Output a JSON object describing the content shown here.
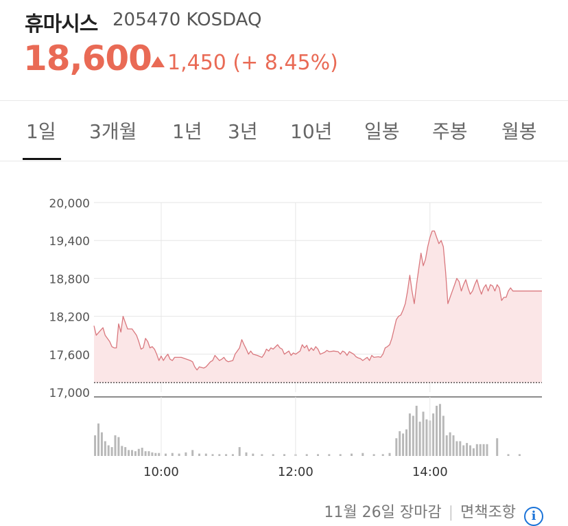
{
  "stock": {
    "name": "휴마시스",
    "code_market": "205470 KOSDAQ",
    "price": "18,600",
    "change": "1,450 (+ 8.45%)",
    "direction": "up",
    "up_color": "#e96a55"
  },
  "tabs": [
    {
      "label": "1일",
      "active": true
    },
    {
      "label": "3개월",
      "active": false
    },
    {
      "label": "1년",
      "active": false
    },
    {
      "label": "3년",
      "active": false
    },
    {
      "label": "10년",
      "active": false
    },
    {
      "label": "일봉",
      "active": false
    },
    {
      "label": "주봉",
      "active": false
    },
    {
      "label": "월봉",
      "active": false
    }
  ],
  "footer": {
    "status": "11월 26일 장마감",
    "disclaimer": "면책조항",
    "info_icon": "info-icon"
  },
  "chart_data": {
    "type": "line",
    "x_unit": "minutes",
    "xlim": [
      "09:00",
      "15:40"
    ],
    "ylim": [
      17000,
      20000
    ],
    "y_ticks": [
      "20,000",
      "19,400",
      "18,800",
      "18,200",
      "17,600",
      "17,000"
    ],
    "x_ticks": [
      "10:00",
      "12:00",
      "14:00"
    ],
    "prev_close": 17150,
    "line_color": "#d9777d",
    "fill_color": "#fbe6e7",
    "grid": true,
    "price_series": [
      [
        "09:00",
        18050
      ],
      [
        "09:02",
        17900
      ],
      [
        "09:06",
        17980
      ],
      [
        "09:08",
        18020
      ],
      [
        "09:10",
        17900
      ],
      [
        "09:14",
        17800
      ],
      [
        "09:16",
        17720
      ],
      [
        "09:18",
        17700
      ],
      [
        "09:20",
        17700
      ],
      [
        "09:22",
        18080
      ],
      [
        "09:24",
        17950
      ],
      [
        "09:26",
        18200
      ],
      [
        "09:28",
        18100
      ],
      [
        "09:30",
        18000
      ],
      [
        "09:34",
        18000
      ],
      [
        "09:38",
        17900
      ],
      [
        "09:40",
        17800
      ],
      [
        "09:42",
        17680
      ],
      [
        "09:44",
        17700
      ],
      [
        "09:46",
        17850
      ],
      [
        "09:48",
        17800
      ],
      [
        "09:50",
        17700
      ],
      [
        "09:52",
        17720
      ],
      [
        "09:54",
        17680
      ],
      [
        "09:56",
        17600
      ],
      [
        "09:58",
        17500
      ],
      [
        "10:00",
        17570
      ],
      [
        "10:02",
        17500
      ],
      [
        "10:04",
        17560
      ],
      [
        "10:06",
        17600
      ],
      [
        "10:08",
        17520
      ],
      [
        "10:10",
        17500
      ],
      [
        "10:12",
        17550
      ],
      [
        "10:18",
        17550
      ],
      [
        "10:26",
        17500
      ],
      [
        "10:28",
        17480
      ],
      [
        "10:30",
        17400
      ],
      [
        "10:32",
        17350
      ],
      [
        "10:34",
        17400
      ],
      [
        "10:38",
        17380
      ],
      [
        "10:40",
        17400
      ],
      [
        "10:44",
        17480
      ],
      [
        "10:46",
        17500
      ],
      [
        "10:48",
        17580
      ],
      [
        "10:50",
        17540
      ],
      [
        "10:52",
        17500
      ],
      [
        "10:54",
        17520
      ],
      [
        "10:56",
        17550
      ],
      [
        "10:58",
        17500
      ],
      [
        "11:00",
        17480
      ],
      [
        "11:04",
        17500
      ],
      [
        "11:06",
        17600
      ],
      [
        "11:10",
        17700
      ],
      [
        "11:12",
        17830
      ],
      [
        "11:14",
        17750
      ],
      [
        "11:16",
        17680
      ],
      [
        "11:18",
        17600
      ],
      [
        "11:20",
        17650
      ],
      [
        "11:22",
        17600
      ],
      [
        "11:26",
        17580
      ],
      [
        "11:30",
        17550
      ],
      [
        "11:32",
        17600
      ],
      [
        "11:34",
        17680
      ],
      [
        "11:36",
        17650
      ],
      [
        "11:38",
        17700
      ],
      [
        "11:40",
        17680
      ],
      [
        "11:44",
        17750
      ],
      [
        "11:46",
        17700
      ],
      [
        "11:48",
        17680
      ],
      [
        "11:50",
        17600
      ],
      [
        "11:54",
        17650
      ],
      [
        "11:56",
        17580
      ],
      [
        "11:58",
        17620
      ],
      [
        "12:00",
        17600
      ],
      [
        "12:04",
        17650
      ],
      [
        "12:06",
        17750
      ],
      [
        "12:08",
        17700
      ],
      [
        "12:10",
        17740
      ],
      [
        "12:12",
        17650
      ],
      [
        "12:14",
        17700
      ],
      [
        "12:16",
        17660
      ],
      [
        "12:18",
        17720
      ],
      [
        "12:20",
        17680
      ],
      [
        "12:22",
        17600
      ],
      [
        "12:26",
        17630
      ],
      [
        "12:28",
        17660
      ],
      [
        "12:30",
        17640
      ],
      [
        "12:34",
        17650
      ],
      [
        "12:38",
        17640
      ],
      [
        "12:40",
        17600
      ],
      [
        "12:42",
        17650
      ],
      [
        "12:44",
        17630
      ],
      [
        "12:46",
        17580
      ],
      [
        "12:48",
        17640
      ],
      [
        "12:50",
        17620
      ],
      [
        "12:52",
        17600
      ],
      [
        "12:54",
        17560
      ],
      [
        "12:56",
        17540
      ],
      [
        "12:58",
        17530
      ],
      [
        "13:00",
        17500
      ],
      [
        "13:04",
        17550
      ],
      [
        "13:06",
        17500
      ],
      [
        "13:08",
        17580
      ],
      [
        "13:10",
        17550
      ],
      [
        "13:14",
        17560
      ],
      [
        "13:16",
        17550
      ],
      [
        "13:18",
        17600
      ],
      [
        "13:20",
        17700
      ],
      [
        "13:22",
        17720
      ],
      [
        "13:24",
        17750
      ],
      [
        "13:26",
        17850
      ],
      [
        "13:28",
        18000
      ],
      [
        "13:30",
        18150
      ],
      [
        "13:32",
        18200
      ],
      [
        "13:34",
        18220
      ],
      [
        "13:36",
        18300
      ],
      [
        "13:38",
        18400
      ],
      [
        "13:40",
        18600
      ],
      [
        "13:42",
        18850
      ],
      [
        "13:44",
        18600
      ],
      [
        "13:46",
        18400
      ],
      [
        "13:48",
        18700
      ],
      [
        "13:50",
        18950
      ],
      [
        "13:52",
        19200
      ],
      [
        "13:54",
        19000
      ],
      [
        "13:56",
        19100
      ],
      [
        "13:58",
        19300
      ],
      [
        "14:00",
        19450
      ],
      [
        "14:02",
        19550
      ],
      [
        "14:04",
        19550
      ],
      [
        "14:06",
        19450
      ],
      [
        "14:08",
        19350
      ],
      [
        "14:10",
        19400
      ],
      [
        "14:12",
        19300
      ],
      [
        "14:14",
        18900
      ],
      [
        "14:16",
        18400
      ],
      [
        "14:18",
        18500
      ],
      [
        "14:20",
        18600
      ],
      [
        "14:22",
        18700
      ],
      [
        "14:24",
        18800
      ],
      [
        "14:26",
        18750
      ],
      [
        "14:28",
        18600
      ],
      [
        "14:30",
        18700
      ],
      [
        "14:32",
        18780
      ],
      [
        "14:34",
        18650
      ],
      [
        "14:36",
        18550
      ],
      [
        "14:38",
        18600
      ],
      [
        "14:40",
        18700
      ],
      [
        "14:42",
        18780
      ],
      [
        "14:44",
        18650
      ],
      [
        "14:46",
        18550
      ],
      [
        "14:48",
        18650
      ],
      [
        "14:50",
        18700
      ],
      [
        "14:52",
        18600
      ],
      [
        "14:54",
        18700
      ],
      [
        "14:56",
        18680
      ],
      [
        "14:58",
        18600
      ],
      [
        "15:00",
        18700
      ],
      [
        "15:02",
        18650
      ],
      [
        "15:04",
        18450
      ],
      [
        "15:06",
        18500
      ],
      [
        "15:08",
        18500
      ],
      [
        "15:10",
        18600
      ],
      [
        "15:12",
        18650
      ],
      [
        "15:14",
        18600
      ],
      [
        "15:16",
        18600
      ],
      [
        "15:40",
        18600
      ]
    ],
    "volume_color": "#b8b8b8",
    "volume_ylim": [
      0,
      100
    ],
    "volume_series": [
      [
        "09:01",
        35
      ],
      [
        "09:04",
        55
      ],
      [
        "09:07",
        40
      ],
      [
        "09:10",
        25
      ],
      [
        "09:13",
        18
      ],
      [
        "09:16",
        15
      ],
      [
        "09:19",
        35
      ],
      [
        "09:22",
        32
      ],
      [
        "09:25",
        17
      ],
      [
        "09:28",
        15
      ],
      [
        "09:31",
        10
      ],
      [
        "09:34",
        10
      ],
      [
        "09:37",
        8
      ],
      [
        "09:40",
        12
      ],
      [
        "09:43",
        14
      ],
      [
        "09:46",
        8
      ],
      [
        "09:49",
        8
      ],
      [
        "09:52",
        6
      ],
      [
        "09:55",
        5
      ],
      [
        "09:58",
        5
      ],
      [
        "10:04",
        4
      ],
      [
        "10:10",
        5
      ],
      [
        "10:16",
        4
      ],
      [
        "10:22",
        6
      ],
      [
        "10:28",
        10
      ],
      [
        "10:34",
        4
      ],
      [
        "10:40",
        4
      ],
      [
        "10:46",
        3
      ],
      [
        "10:52",
        3
      ],
      [
        "10:58",
        3
      ],
      [
        "11:04",
        3
      ],
      [
        "11:10",
        15
      ],
      [
        "11:16",
        6
      ],
      [
        "11:22",
        4
      ],
      [
        "11:30",
        3
      ],
      [
        "11:40",
        3
      ],
      [
        "11:50",
        3
      ],
      [
        "12:00",
        3
      ],
      [
        "12:10",
        3
      ],
      [
        "12:20",
        3
      ],
      [
        "12:30",
        3
      ],
      [
        "12:40",
        3
      ],
      [
        "12:50",
        4
      ],
      [
        "13:00",
        5
      ],
      [
        "13:10",
        3
      ],
      [
        "13:18",
        3
      ],
      [
        "13:24",
        5
      ],
      [
        "13:30",
        30
      ],
      [
        "13:33",
        42
      ],
      [
        "13:36",
        38
      ],
      [
        "13:39",
        45
      ],
      [
        "13:42",
        72
      ],
      [
        "13:45",
        68
      ],
      [
        "13:48",
        85
      ],
      [
        "13:51",
        58
      ],
      [
        "13:54",
        75
      ],
      [
        "13:57",
        62
      ],
      [
        "14:00",
        60
      ],
      [
        "14:03",
        72
      ],
      [
        "14:06",
        85
      ],
      [
        "14:09",
        88
      ],
      [
        "14:12",
        68
      ],
      [
        "14:15",
        35
      ],
      [
        "14:18",
        40
      ],
      [
        "14:21",
        35
      ],
      [
        "14:24",
        25
      ],
      [
        "14:27",
        25
      ],
      [
        "14:30",
        18
      ],
      [
        "14:33",
        22
      ],
      [
        "14:36",
        18
      ],
      [
        "14:39",
        13
      ],
      [
        "14:42",
        20
      ],
      [
        "14:45",
        20
      ],
      [
        "14:48",
        20
      ],
      [
        "14:51",
        20
      ],
      [
        "15:00",
        30
      ],
      [
        "15:10",
        3
      ],
      [
        "15:20",
        3
      ]
    ]
  }
}
